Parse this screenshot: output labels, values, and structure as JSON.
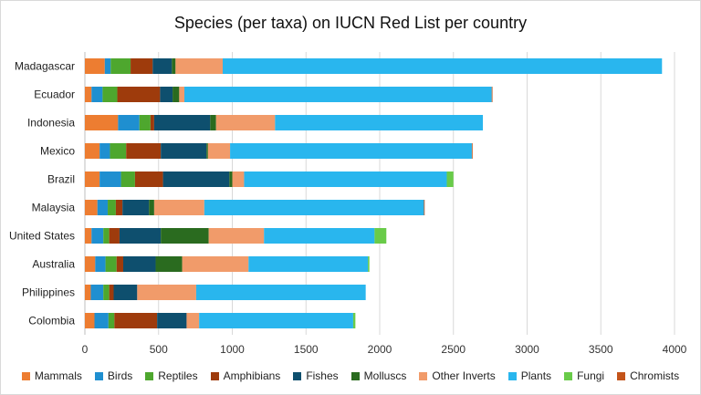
{
  "chart_data": {
    "type": "bar",
    "orientation": "horizontal",
    "stacked": true,
    "title": "Species (per taxa) on IUCN Red List per country",
    "categories": [
      "Madagascar",
      "Ecuador",
      "Indonesia",
      "Mexico",
      "Brazil",
      "Malaysia",
      "United States",
      "Australia",
      "Philippines",
      "Colombia"
    ],
    "xlim": [
      0,
      4000
    ],
    "xticks": [
      0,
      500,
      1000,
      1500,
      2000,
      2500,
      3000,
      3500,
      4000
    ],
    "grid": "vertical",
    "legend_position": "bottom",
    "series": [
      {
        "name": "Mammals",
        "color": "#ED7D31",
        "values": [
          135,
          45,
          225,
          100,
          100,
          85,
          45,
          70,
          40,
          65
        ]
      },
      {
        "name": "Birds",
        "color": "#1F8FD0",
        "values": [
          40,
          75,
          145,
          70,
          145,
          70,
          80,
          70,
          85,
          95
        ]
      },
      {
        "name": "Reptiles",
        "color": "#4EA72E",
        "values": [
          135,
          100,
          75,
          110,
          95,
          55,
          40,
          75,
          40,
          40
        ]
      },
      {
        "name": "Amphibians",
        "color": "#9E3B0C",
        "values": [
          150,
          290,
          25,
          235,
          190,
          45,
          70,
          45,
          30,
          290
        ]
      },
      {
        "name": "Fishes",
        "color": "#0E4F6E",
        "values": [
          130,
          85,
          380,
          310,
          450,
          180,
          280,
          220,
          160,
          200
        ]
      },
      {
        "name": "Molluscs",
        "color": "#2A6B1F",
        "values": [
          25,
          45,
          40,
          10,
          20,
          35,
          325,
          180,
          0,
          0
        ]
      },
      {
        "name": "Other Inverts",
        "color": "#F19B6A",
        "values": [
          320,
          35,
          400,
          150,
          80,
          340,
          375,
          450,
          400,
          85
        ]
      },
      {
        "name": "Plants",
        "color": "#29B6EE",
        "values": [
          2980,
          2085,
          1410,
          1640,
          1375,
          1490,
          750,
          810,
          1150,
          1045
        ]
      },
      {
        "name": "Fungi",
        "color": "#69CB49",
        "values": [
          0,
          0,
          0,
          0,
          45,
          0,
          80,
          10,
          0,
          15
        ]
      },
      {
        "name": "Chromists",
        "color": "#C4541A",
        "values": [
          0,
          5,
          0,
          5,
          0,
          5,
          0,
          0,
          0,
          0
        ]
      }
    ]
  }
}
